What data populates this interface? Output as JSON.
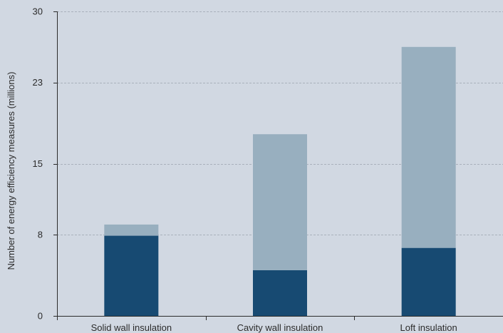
{
  "chart_data": {
    "type": "bar",
    "stacked": true,
    "title": "",
    "xlabel": "",
    "ylabel": "Number of energy efficiency measures (millions)",
    "ylim": [
      0,
      30
    ],
    "yticks": [
      0,
      8,
      15,
      23,
      30
    ],
    "grid": true,
    "legend": "none",
    "categories": [
      "Solid wall insulation",
      "Cavity wall insulation",
      "Loft insulation"
    ],
    "series": [
      {
        "values": [
          7.9,
          4.5,
          6.7
        ],
        "color": "#174a72"
      },
      {
        "values": [
          1.1,
          13.4,
          19.8
        ],
        "color": "#98afbf"
      }
    ]
  },
  "colors": {
    "background": "#d1d8e2",
    "grid": "#a9b1bc",
    "axis": "#2b2b2b"
  }
}
